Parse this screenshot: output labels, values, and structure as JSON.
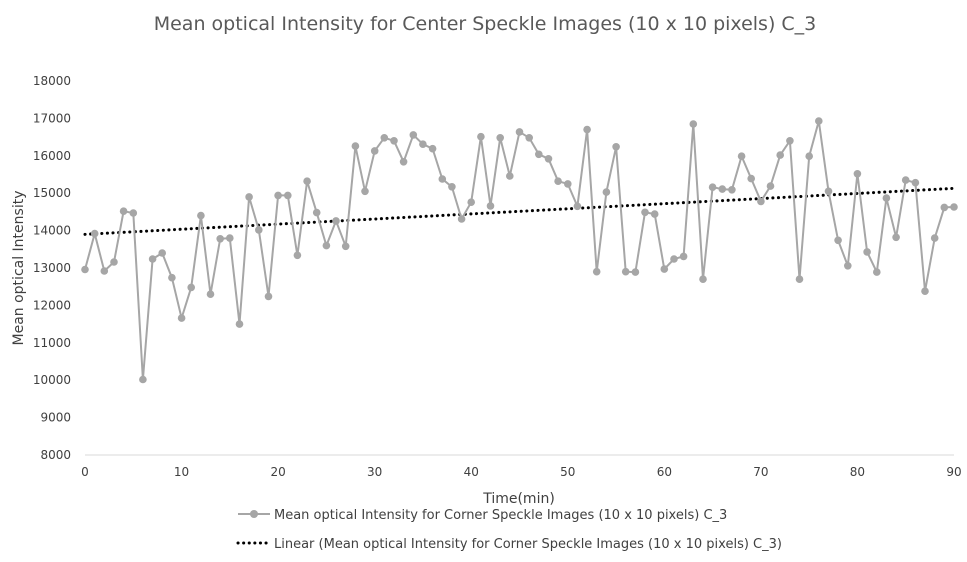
{
  "chart_data": {
    "type": "line",
    "title": "Mean optical Intensity for Center Speckle Images (10 x 10 pixels) C_3",
    "xlabel": "Time(min)",
    "ylabel": "Mean optical Intensity",
    "xlim": [
      0,
      90
    ],
    "ylim": [
      8000,
      18000
    ],
    "x_ticks": [
      "0",
      "10",
      "20",
      "30",
      "40",
      "50",
      "60",
      "70",
      "80",
      "90"
    ],
    "y_ticks": [
      "8000",
      "9000",
      "10000",
      "11000",
      "12000",
      "13000",
      "14000",
      "15000",
      "16000",
      "17000",
      "18000"
    ],
    "grid": false,
    "legend_position": "bottom",
    "series": [
      {
        "name": "Mean optical Intensity for Corner Speckle Images (10 x 10 pixels) C_3",
        "color": "#a6a6a6",
        "x": [
          0,
          1,
          2,
          3,
          4,
          5,
          6,
          7,
          8,
          9,
          10,
          11,
          12,
          13,
          14,
          15,
          16,
          17,
          18,
          19,
          20,
          21,
          22,
          23,
          24,
          25,
          26,
          27,
          28,
          29,
          30,
          31,
          32,
          33,
          34,
          35,
          36,
          37,
          38,
          39,
          40,
          41,
          42,
          43,
          44,
          45,
          46,
          47,
          48,
          49,
          50,
          51,
          52,
          53,
          54,
          55,
          56,
          57,
          58,
          59,
          60,
          61,
          62,
          63,
          64,
          65,
          66,
          67,
          68,
          69,
          70,
          71,
          72,
          73,
          74,
          75,
          76,
          77,
          78,
          79,
          80,
          81,
          82,
          83,
          84,
          85,
          86,
          87,
          88,
          89,
          90
        ],
        "values": [
          12960,
          13920,
          12920,
          13160,
          14520,
          14470,
          10020,
          13240,
          13400,
          12740,
          11660,
          12480,
          14400,
          12300,
          13780,
          13800,
          11500,
          14900,
          14020,
          12240,
          14940,
          14940,
          13340,
          15320,
          14480,
          13600,
          14260,
          13580,
          16260,
          15050,
          16130,
          16480,
          16400,
          15840,
          16560,
          16310,
          16190,
          15380,
          15170,
          14310,
          14760,
          16510,
          14660,
          16480,
          15460,
          16640,
          16480,
          16040,
          15920,
          15320,
          15250,
          14650,
          16700,
          12900,
          15030,
          16240,
          12900,
          12890,
          14490,
          14440,
          12970,
          13240,
          13310,
          16850,
          12700,
          15160,
          15110,
          15090,
          15990,
          15390,
          14780,
          15190,
          16020,
          16400,
          12700,
          15990,
          16930,
          15050,
          13740,
          13060,
          15520,
          13430,
          12890,
          14870,
          13820,
          15350,
          15280,
          12380,
          13800,
          14620,
          14630
        ]
      }
    ],
    "trendline": {
      "name": "Linear (Mean optical Intensity for Corner Speckle Images (10 x 10 pixels) C_3)",
      "type": "linear",
      "color": "#000000",
      "x": [
        0,
        90
      ],
      "values": [
        13900,
        15130
      ]
    }
  }
}
